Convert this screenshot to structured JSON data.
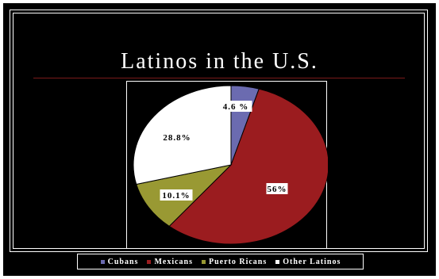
{
  "slide": {
    "title": "Latinos in the U.S.",
    "background_color": "#000000"
  },
  "chart_data": {
    "type": "pie",
    "title": "Latinos in the U.S.",
    "legend_position": "bottom",
    "slices": [
      {
        "name": "Cubans",
        "value": 4.6,
        "label": "4.6 %",
        "color": "#6b6bb0"
      },
      {
        "name": "Mexicans",
        "value": 56,
        "label": "56%",
        "color": "#9b1c1f"
      },
      {
        "name": "Puerto Ricans",
        "value": 10.1,
        "label": "10.1%",
        "color": "#999933"
      },
      {
        "name": "Other Latinos",
        "value": 28.8,
        "label": "28.8%",
        "color": "#ffffff"
      }
    ]
  }
}
